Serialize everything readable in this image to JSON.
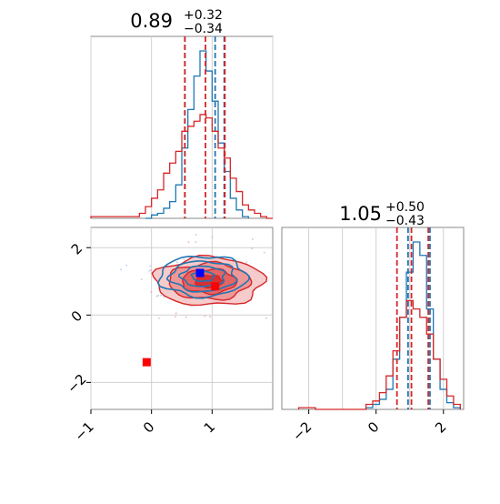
{
  "chart_data": [
    {
      "type": "histogram",
      "panel": "top-left marginal (param 1)",
      "title": {
        "value": "0.89",
        "plus": "+0.32",
        "minus": "−0.34"
      },
      "xlim": [
        -1,
        2
      ],
      "series": [
        {
          "color": "#1f77b4",
          "bin_edges": [
            -0.1,
            0.0,
            0.1,
            0.2,
            0.3,
            0.4,
            0.5,
            0.6,
            0.7,
            0.8,
            0.9,
            1.0,
            1.1,
            1.2,
            1.3,
            1.4,
            1.5,
            1.6
          ],
          "counts": [
            0,
            0.02,
            0.03,
            0.06,
            0.1,
            0.2,
            0.42,
            0.65,
            0.85,
            1.0,
            0.88,
            0.7,
            0.45,
            0.28,
            0.12,
            0.05,
            0.01
          ],
          "quantiles": [
            0.55,
            1.05,
            1.2
          ]
        },
        {
          "color": "#d62728",
          "bin_edges": [
            -1.0,
            -0.2,
            -0.1,
            0.0,
            0.1,
            0.2,
            0.3,
            0.4,
            0.5,
            0.6,
            0.7,
            0.8,
            0.9,
            1.0,
            1.1,
            1.2,
            1.3,
            1.4,
            1.5,
            1.6,
            1.7,
            1.8,
            1.9,
            2.0
          ],
          "counts": [
            0.01,
            0.03,
            0.07,
            0.12,
            0.17,
            0.27,
            0.33,
            0.4,
            0.52,
            0.55,
            0.58,
            0.62,
            0.6,
            0.52,
            0.42,
            0.36,
            0.24,
            0.16,
            0.08,
            0.05,
            0.03,
            0.01,
            0
          ],
          "quantiles": [
            0.55,
            0.89,
            1.21
          ]
        }
      ]
    },
    {
      "type": "contour",
      "panel": "bottom-left 2D (param 1 vs param 2)",
      "xlim": [
        -1,
        2
      ],
      "ylim": [
        -2.8,
        2.6
      ],
      "x_ticks": [
        "−1",
        "0",
        "1"
      ],
      "y_ticks": [
        "−2",
        "0",
        "2"
      ],
      "series": [
        {
          "color": "#d62728",
          "center": [
            0.95,
            1.0
          ],
          "levels_sigma": [
            0.5,
            1.0,
            1.5,
            2.0
          ],
          "spread": [
            0.5,
            0.55
          ]
        },
        {
          "color": "#1f77b4",
          "center": [
            0.85,
            1.15
          ],
          "levels_sigma": [
            0.5,
            1.0,
            1.5,
            2.0
          ],
          "spread": [
            0.4,
            0.5
          ]
        }
      ],
      "markers": [
        {
          "color": "#0000ff",
          "x": 0.8,
          "y": 1.25
        },
        {
          "color": "#ff0000",
          "x": 1.05,
          "y": 0.85
        },
        {
          "color": "#ff0000",
          "x": -0.08,
          "y": -1.4
        }
      ],
      "grid": true
    },
    {
      "type": "histogram",
      "panel": "bottom-right marginal (param 2)",
      "title": {
        "value": "1.05",
        "plus": "+0.50",
        "minus": "−0.43"
      },
      "xlim": [
        -2.8,
        2.6
      ],
      "x_ticks": [
        "−2",
        "0",
        "2"
      ],
      "series": [
        {
          "color": "#1f77b4",
          "bin_edges": [
            -0.3,
            -0.1,
            0.1,
            0.3,
            0.5,
            0.7,
            0.9,
            1.1,
            1.3,
            1.5,
            1.7,
            1.9,
            2.1,
            2.3,
            2.5
          ],
          "counts": [
            0.01,
            0.03,
            0.06,
            0.12,
            0.3,
            0.55,
            0.82,
            1.0,
            0.92,
            0.6,
            0.3,
            0.12,
            0.04,
            0.01
          ],
          "quantiles": [
            0.95,
            1.6
          ]
        },
        {
          "color": "#d62728",
          "bin_edges": [
            -2.3,
            -1.8,
            -0.3,
            -0.1,
            0.1,
            0.3,
            0.5,
            0.7,
            0.9,
            1.1,
            1.3,
            1.5,
            1.7,
            1.9,
            2.1,
            2.3,
            2.5
          ],
          "counts": [
            0.01,
            0,
            0.03,
            0.05,
            0.1,
            0.2,
            0.35,
            0.55,
            0.65,
            0.6,
            0.55,
            0.45,
            0.3,
            0.18,
            0.08,
            0.03
          ],
          "quantiles": [
            0.62,
            1.05,
            1.55
          ]
        }
      ]
    }
  ]
}
